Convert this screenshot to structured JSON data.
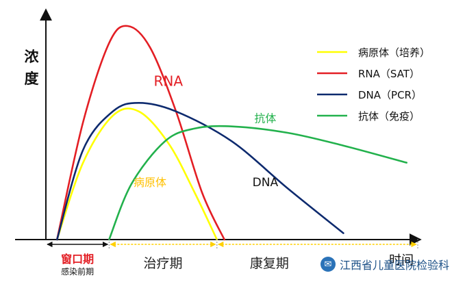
{
  "chart_data": {
    "type": "line",
    "title": "",
    "ylabel": "浓度",
    "xlabel": "时间",
    "x": [
      0,
      1,
      2,
      3,
      4,
      5,
      6,
      7,
      8,
      9,
      10
    ],
    "xlim": [
      0,
      10
    ],
    "ylim": [
      0,
      1
    ],
    "series": [
      {
        "name": "病原体（培养）",
        "color": "#ffff00",
        "x": [
          0.3,
          1.0,
          1.8,
          2.5,
          3.3,
          4.0,
          4.6
        ],
        "values": [
          0,
          0.36,
          0.58,
          0.6,
          0.45,
          0.22,
          0
        ]
      },
      {
        "name": "RNA（SAT）",
        "color": "#e31e24",
        "x": [
          0.3,
          1.0,
          1.7,
          2.2,
          2.8,
          3.5,
          4.2,
          4.8
        ],
        "values": [
          0,
          0.55,
          0.92,
          1.0,
          0.9,
          0.6,
          0.22,
          0
        ]
      },
      {
        "name": "DNA（PCR）",
        "color": "#0d2a6e",
        "x": [
          0.3,
          1.0,
          1.8,
          2.5,
          3.5,
          5.0,
          6.5,
          8.0
        ],
        "values": [
          0,
          0.42,
          0.6,
          0.64,
          0.6,
          0.46,
          0.24,
          0.03
        ]
      },
      {
        "name": "抗体（免疫）",
        "color": "#22b14c",
        "x": [
          1.7,
          2.3,
          3.2,
          4.0,
          5.0,
          6.5,
          8.0,
          9.7
        ],
        "values": [
          0,
          0.26,
          0.46,
          0.52,
          0.53,
          0.5,
          0.44,
          0.36
        ]
      }
    ],
    "curve_labels": [
      {
        "text": "RNA",
        "series": "RNA（SAT）",
        "color": "#e31e24"
      },
      {
        "text": "抗体",
        "series": "抗体（免疫）",
        "color": "#22b14c"
      },
      {
        "text": "病原体",
        "series": "病原体（培养）",
        "color": "#ffc000"
      },
      {
        "text": "DNA",
        "series": "DNA（PCR）",
        "color": "#111111"
      }
    ],
    "periods": [
      {
        "name": "窗口期",
        "sub": "感染前期",
        "range": [
          0,
          1.7
        ],
        "color": "#e31e24"
      },
      {
        "name": "治疗期",
        "range": [
          1.7,
          4.6
        ],
        "color": "#222222"
      },
      {
        "name": "康复期",
        "range": [
          4.6,
          10
        ],
        "color": "#222222"
      }
    ],
    "legend_position": "top-right",
    "grid": false
  },
  "watermark": {
    "text": "江西省儿童医院检验科"
  }
}
